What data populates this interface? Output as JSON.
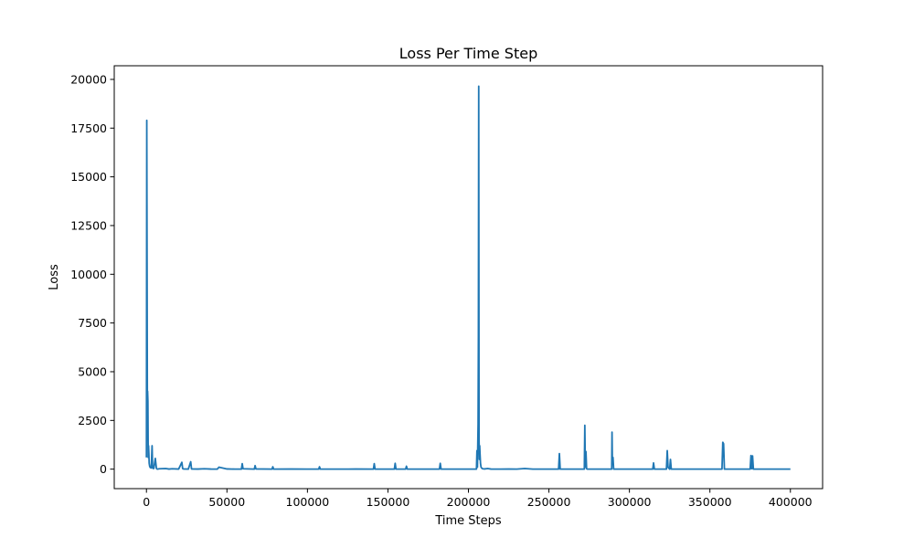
{
  "chart_data": {
    "type": "line",
    "title": "Loss Per Time Step",
    "xlabel": "Time Steps",
    "ylabel": "Loss",
    "xlim": [
      -20000,
      420000
    ],
    "ylim": [
      -1000,
      20700
    ],
    "xticks": [
      0,
      50000,
      100000,
      150000,
      200000,
      250000,
      300000,
      350000,
      400000
    ],
    "xtick_labels": [
      "0",
      "50000",
      "100000",
      "150000",
      "200000",
      "250000",
      "300000",
      "350000",
      "400000"
    ],
    "yticks": [
      0,
      2500,
      5000,
      7500,
      10000,
      12500,
      15000,
      17500,
      20000
    ],
    "ytick_labels": [
      "0",
      "2500",
      "5000",
      "7500",
      "10000",
      "12500",
      "15000",
      "17500",
      "20000"
    ],
    "grid": false,
    "series": [
      {
        "color": "#1f77b4",
        "x": [
          0,
          200,
          400,
          600,
          700,
          900,
          1100,
          1300,
          1500,
          1700,
          2000,
          2400,
          3000,
          3500,
          3800,
          4000,
          4200,
          4600,
          5500,
          6200,
          6500,
          6800,
          8000,
          12000,
          14000,
          16000,
          20000,
          22000,
          22500,
          23000,
          26000,
          27500,
          28000,
          32000,
          36000,
          40000,
          44000,
          45000,
          50000,
          55000,
          59000,
          59500,
          60000,
          67000,
          67500,
          68000,
          78000,
          78500,
          79000,
          90000,
          100000,
          107000,
          107500,
          108000,
          120000,
          130000,
          140000,
          141000,
          141500,
          142000,
          154000,
          154500,
          155000,
          161000,
          161500,
          162000,
          182000,
          182500,
          183000,
          195000,
          204000,
          205000,
          205300,
          205600,
          206000,
          206200,
          206400,
          206600,
          206800,
          207000,
          207200,
          207500,
          207800,
          208000,
          208300,
          208600,
          209000,
          210000,
          212000,
          214000,
          220000,
          225000,
          230000,
          235000,
          240000,
          250000,
          256000,
          256500,
          257000,
          265000,
          272000,
          272300,
          272600,
          273000,
          273400,
          273800,
          280000,
          289000,
          289200,
          289400,
          289800,
          290200,
          300000,
          310000,
          314500,
          315000,
          315500,
          316000,
          323000,
          323500,
          324000,
          325000,
          325500,
          326000,
          340000,
          357500,
          358000,
          358500,
          359000,
          370000,
          375000,
          375500,
          376000,
          376500,
          377000,
          390000,
          400000
        ],
        "y": [
          600,
          17900,
          9800,
          1500,
          4000,
          3500,
          600,
          1200,
          800,
          300,
          150,
          80,
          60,
          1200,
          200,
          60,
          30,
          40,
          550,
          40,
          10,
          0,
          20,
          30,
          5,
          20,
          5,
          350,
          30,
          10,
          0,
          380,
          10,
          5,
          20,
          5,
          0,
          100,
          10,
          0,
          0,
          280,
          20,
          0,
          180,
          10,
          0,
          120,
          0,
          5,
          0,
          0,
          120,
          0,
          0,
          5,
          0,
          0,
          280,
          0,
          0,
          300,
          0,
          0,
          150,
          0,
          0,
          300,
          0,
          0,
          0,
          0,
          950,
          100,
          2300,
          6800,
          19650,
          1500,
          500,
          1200,
          800,
          300,
          120,
          80,
          50,
          30,
          20,
          10,
          30,
          5,
          0,
          5,
          0,
          30,
          0,
          0,
          0,
          800,
          0,
          0,
          0,
          2250,
          100,
          900,
          20,
          0,
          0,
          0,
          1900,
          400,
          600,
          0,
          0,
          0,
          0,
          320,
          0,
          0,
          0,
          950,
          100,
          0,
          500,
          0,
          0,
          0,
          1380,
          1300,
          0,
          0,
          0,
          700,
          20,
          680,
          0,
          0,
          0
        ]
      }
    ]
  }
}
